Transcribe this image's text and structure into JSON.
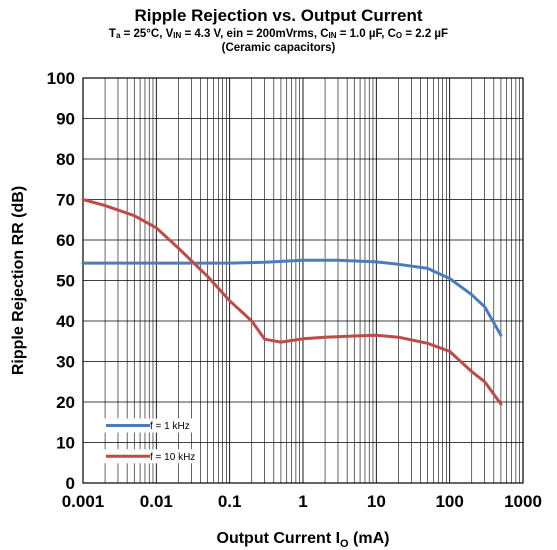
{
  "chart_data": {
    "type": "line",
    "title": "Ripple Rejection vs. Output Current",
    "subtitle_parts": [
      {
        "t": "T"
      },
      {
        "t": "a",
        "sub": true
      },
      {
        "t": " = 25°C, V"
      },
      {
        "t": "IN",
        "sub": true
      },
      {
        "t": " = 4.3 V, ein = 200mVrms, C"
      },
      {
        "t": "IN",
        "sub": true
      },
      {
        "t": " = 1.0 µF, C"
      },
      {
        "t": "O",
        "sub": true
      },
      {
        "t": " = 2.2 µF"
      }
    ],
    "subtitle2": "(Ceramic capacitors)",
    "xlabel_main": "Output Current I",
    "xlabel_sub": "O",
    "xlabel_unit": " (mA)",
    "ylabel": "Ripple Rejection RR (dB)",
    "x_scale": "log",
    "xlim": [
      0.001,
      1000
    ],
    "ylim": [
      0,
      100
    ],
    "x_ticks": [
      0.001,
      0.01,
      0.1,
      1,
      10,
      100,
      1000
    ],
    "x_tick_labels": [
      "0.001",
      "0.01",
      "0.1",
      "1",
      "10",
      "100",
      "1000"
    ],
    "y_ticks": [
      0,
      10,
      20,
      30,
      40,
      50,
      60,
      70,
      80,
      90,
      100
    ],
    "y_tick_labels": [
      "0",
      "10",
      "20",
      "30",
      "40",
      "50",
      "60",
      "70",
      "80",
      "90",
      "100"
    ],
    "grid": true,
    "legend_position": "bottom-left",
    "series": [
      {
        "name": "f = 1 kHz",
        "color": "#4a7ebb",
        "x": [
          0.001,
          0.01,
          0.1,
          0.3,
          1,
          3,
          10,
          20,
          50,
          100,
          200,
          300,
          500
        ],
        "y": [
          54.3,
          54.3,
          54.3,
          54.5,
          55.0,
          55.0,
          54.6,
          54.0,
          53.0,
          50.5,
          46.5,
          43.5,
          36.5
        ]
      },
      {
        "name": "f = 10 kHz",
        "color": "#be4b48",
        "x": [
          0.001,
          0.002,
          0.005,
          0.01,
          0.02,
          0.05,
          0.1,
          0.2,
          0.3,
          0.5,
          1,
          2,
          5,
          10,
          20,
          50,
          100,
          200,
          300,
          500
        ],
        "y": [
          70.0,
          68.5,
          66.0,
          63.0,
          58.0,
          51.0,
          45.0,
          40.0,
          35.5,
          34.8,
          35.6,
          36.0,
          36.3,
          36.5,
          36.0,
          34.5,
          32.5,
          27.5,
          25.0,
          19.5
        ]
      }
    ]
  }
}
